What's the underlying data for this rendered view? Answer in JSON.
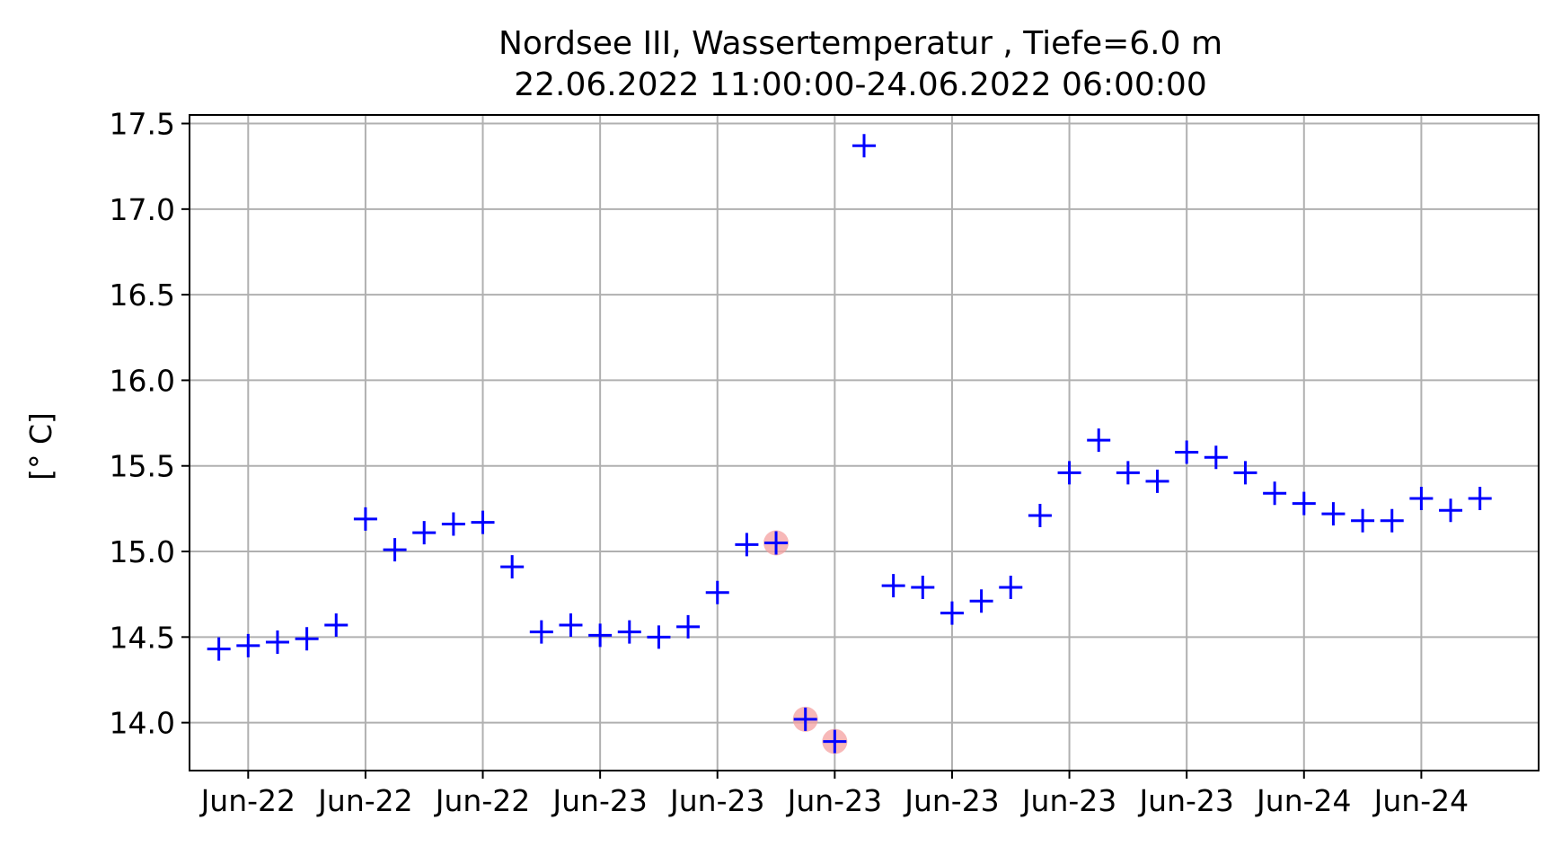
{
  "chart_data": {
    "type": "scatter",
    "title": "Nordsee III, Wassertemperatur , Tiefe=6.0 m",
    "subtitle": "22.06.2022 11:00:00-24.06.2022 06:00:00",
    "xlabel": "",
    "ylabel": "[° C]",
    "ylim": [
      13.72,
      17.55
    ],
    "yticks": [
      14.0,
      14.5,
      15.0,
      15.5,
      16.0,
      16.5,
      17.0,
      17.5
    ],
    "ytick_labels": [
      "14.0",
      "14.5",
      "15.0",
      "15.5",
      "16.0",
      "16.5",
      "17.0",
      "17.5"
    ],
    "x_start": "2022-06-22 11:00",
    "x_end": "2022-06-24 06:00",
    "xlim": [
      "2022-06-22 10:00",
      "2022-06-24 08:00"
    ],
    "xticks": [
      "2022-06-22 12:00",
      "2022-06-22 16:00",
      "2022-06-22 20:00",
      "2022-06-23 00:00",
      "2022-06-23 04:00",
      "2022-06-23 08:00",
      "2022-06-23 12:00",
      "2022-06-23 16:00",
      "2022-06-23 20:00",
      "2022-06-24 00:00",
      "2022-06-24 04:00"
    ],
    "xtick_labels": [
      "Jun-22",
      "Jun-22",
      "Jun-22",
      "Jun-23",
      "Jun-23",
      "Jun-23",
      "Jun-23",
      "Jun-23",
      "Jun-23",
      "Jun-24",
      "Jun-24"
    ],
    "grid": true,
    "marker": "+",
    "marker_color": "#0000ff",
    "highlight_color": "#f4a0a0",
    "series": [
      {
        "x": [
          "2022-06-22 11:00",
          "2022-06-22 12:00",
          "2022-06-22 13:00",
          "2022-06-22 14:00",
          "2022-06-22 15:00",
          "2022-06-22 16:00",
          "2022-06-22 17:00",
          "2022-06-22 18:00",
          "2022-06-22 19:00",
          "2022-06-22 20:00",
          "2022-06-22 21:00",
          "2022-06-22 22:00",
          "2022-06-22 23:00",
          "2022-06-23 00:00",
          "2022-06-23 01:00",
          "2022-06-23 02:00",
          "2022-06-23 03:00",
          "2022-06-23 04:00",
          "2022-06-23 05:00",
          "2022-06-23 06:00",
          "2022-06-23 07:00",
          "2022-06-23 08:00",
          "2022-06-23 09:00",
          "2022-06-23 10:00",
          "2022-06-23 11:00",
          "2022-06-23 12:00",
          "2022-06-23 13:00",
          "2022-06-23 14:00",
          "2022-06-23 15:00",
          "2022-06-23 16:00",
          "2022-06-23 17:00",
          "2022-06-23 18:00",
          "2022-06-23 19:00",
          "2022-06-23 20:00",
          "2022-06-23 21:00",
          "2022-06-23 22:00",
          "2022-06-23 23:00",
          "2022-06-24 00:00",
          "2022-06-24 01:00",
          "2022-06-24 02:00",
          "2022-06-24 03:00",
          "2022-06-24 04:00",
          "2022-06-24 05:00",
          "2022-06-24 06:00"
        ],
        "y": [
          14.43,
          14.45,
          14.47,
          14.49,
          14.57,
          15.19,
          15.01,
          15.11,
          15.16,
          15.17,
          14.91,
          14.53,
          14.57,
          14.51,
          14.53,
          14.5,
          14.56,
          14.76,
          15.04,
          15.05,
          14.02,
          13.89,
          17.37,
          14.8,
          14.79,
          14.64,
          14.71,
          14.79,
          15.21,
          15.46,
          15.65,
          15.46,
          15.41,
          15.58,
          15.55,
          15.46,
          15.34,
          15.28,
          15.22,
          15.18,
          15.18,
          15.31,
          15.24,
          15.31
        ],
        "flagged": [
          "2022-06-23 06:00",
          "2022-06-23 07:00",
          "2022-06-23 08:00"
        ]
      }
    ]
  }
}
